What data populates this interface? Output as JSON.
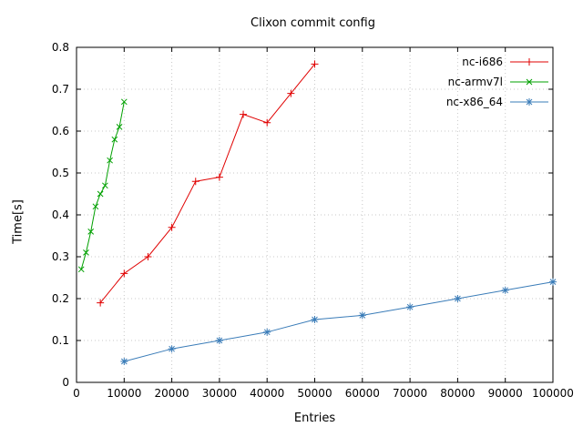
{
  "chart_data": {
    "type": "line",
    "title": "Clixon commit config",
    "xlabel": "Entries",
    "ylabel": "Time[s]",
    "xlim": [
      0,
      100000
    ],
    "ylim": [
      0,
      0.8
    ],
    "grid": true,
    "legend_position": "top-right-inside",
    "background_color": "#ffffff",
    "grid_color": "#c8c8c8",
    "axis_color": "#000000",
    "x_ticks": [
      {
        "value": 0,
        "label": "0"
      },
      {
        "value": 10000,
        "label": "10000"
      },
      {
        "value": 20000,
        "label": "20000"
      },
      {
        "value": 30000,
        "label": "30000"
      },
      {
        "value": 40000,
        "label": "40000"
      },
      {
        "value": 50000,
        "label": "50000"
      },
      {
        "value": 60000,
        "label": "60000"
      },
      {
        "value": 70000,
        "label": "70000"
      },
      {
        "value": 80000,
        "label": "80000"
      },
      {
        "value": 90000,
        "label": "90000"
      },
      {
        "value": 100000,
        "label": "100000"
      }
    ],
    "y_ticks": [
      {
        "value": 0.0,
        "label": "0"
      },
      {
        "value": 0.1,
        "label": "0.1"
      },
      {
        "value": 0.2,
        "label": "0.2"
      },
      {
        "value": 0.3,
        "label": "0.3"
      },
      {
        "value": 0.4,
        "label": "0.4"
      },
      {
        "value": 0.5,
        "label": "0.5"
      },
      {
        "value": 0.6,
        "label": "0.6"
      },
      {
        "value": 0.7,
        "label": "0.7"
      },
      {
        "value": 0.8,
        "label": "0.8"
      }
    ],
    "series": [
      {
        "name": "nc-i686",
        "color": "#e00000",
        "marker": "plus",
        "x": [
          5000,
          10000,
          15000,
          20000,
          25000,
          30000,
          35000,
          40000,
          45000,
          50000
        ],
        "y": [
          0.19,
          0.26,
          0.3,
          0.37,
          0.48,
          0.49,
          0.64,
          0.62,
          0.69,
          0.76
        ]
      },
      {
        "name": "nc-armv7l",
        "color": "#00a000",
        "marker": "cross",
        "x": [
          1000,
          2000,
          3000,
          4000,
          5000,
          6000,
          7000,
          8000,
          9000,
          10000
        ],
        "y": [
          0.27,
          0.31,
          0.36,
          0.42,
          0.45,
          0.47,
          0.53,
          0.58,
          0.61,
          0.67
        ]
      },
      {
        "name": "nc-x86_64",
        "color": "#3a7cb8",
        "marker": "star",
        "x": [
          10000,
          20000,
          30000,
          40000,
          50000,
          60000,
          70000,
          80000,
          90000,
          100000
        ],
        "y": [
          0.05,
          0.08,
          0.1,
          0.12,
          0.15,
          0.16,
          0.18,
          0.2,
          0.22,
          0.24
        ]
      }
    ]
  }
}
